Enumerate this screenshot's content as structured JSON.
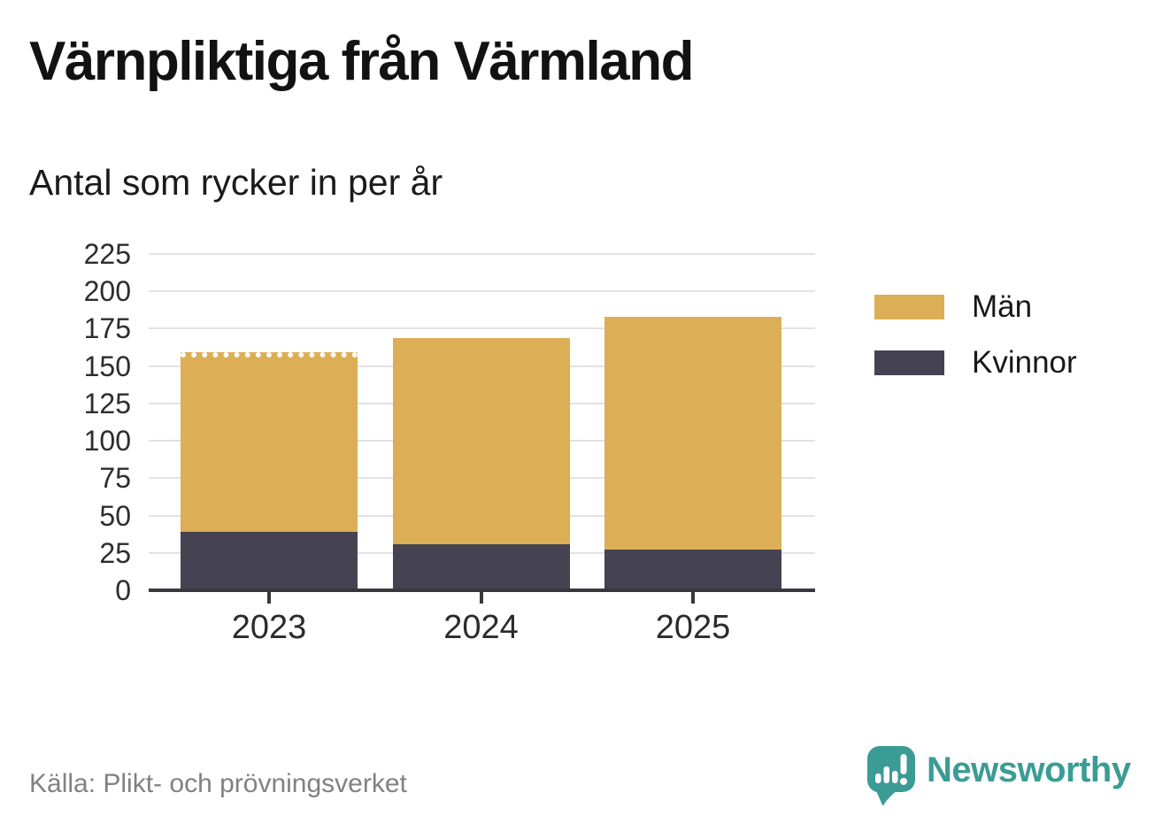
{
  "header": {
    "title": "Värnpliktiga från Värmland",
    "subtitle": "Antal som rycker in per år"
  },
  "chart_data": {
    "type": "bar",
    "stacked": true,
    "categories": [
      "2023",
      "2024",
      "2025"
    ],
    "series": [
      {
        "name": "Kvinnor",
        "color": "#454252",
        "values": [
          39,
          31,
          27
        ]
      },
      {
        "name": "Män",
        "color": "#dcae55",
        "values": [
          120,
          138,
          156
        ]
      }
    ],
    "ylim": [
      0,
      225
    ],
    "yticks": [
      0,
      25,
      50,
      75,
      100,
      125,
      150,
      175,
      200,
      225
    ],
    "grid": true,
    "legend_position": "right",
    "dashed_top_bars": [
      0
    ]
  },
  "legend": {
    "items": [
      {
        "label": "Män",
        "color": "#dcae55"
      },
      {
        "label": "Kvinnor",
        "color": "#454252"
      }
    ]
  },
  "footer": {
    "source": "Källa: Plikt- och prövningsverket",
    "brand": "Newsworthy"
  },
  "colors": {
    "bar_men": "#dcae55",
    "bar_women": "#454252",
    "axis": "#39383e",
    "gridline": "#e2e2e2",
    "brand_teal": "#3b9c95",
    "source_text": "#818181"
  }
}
